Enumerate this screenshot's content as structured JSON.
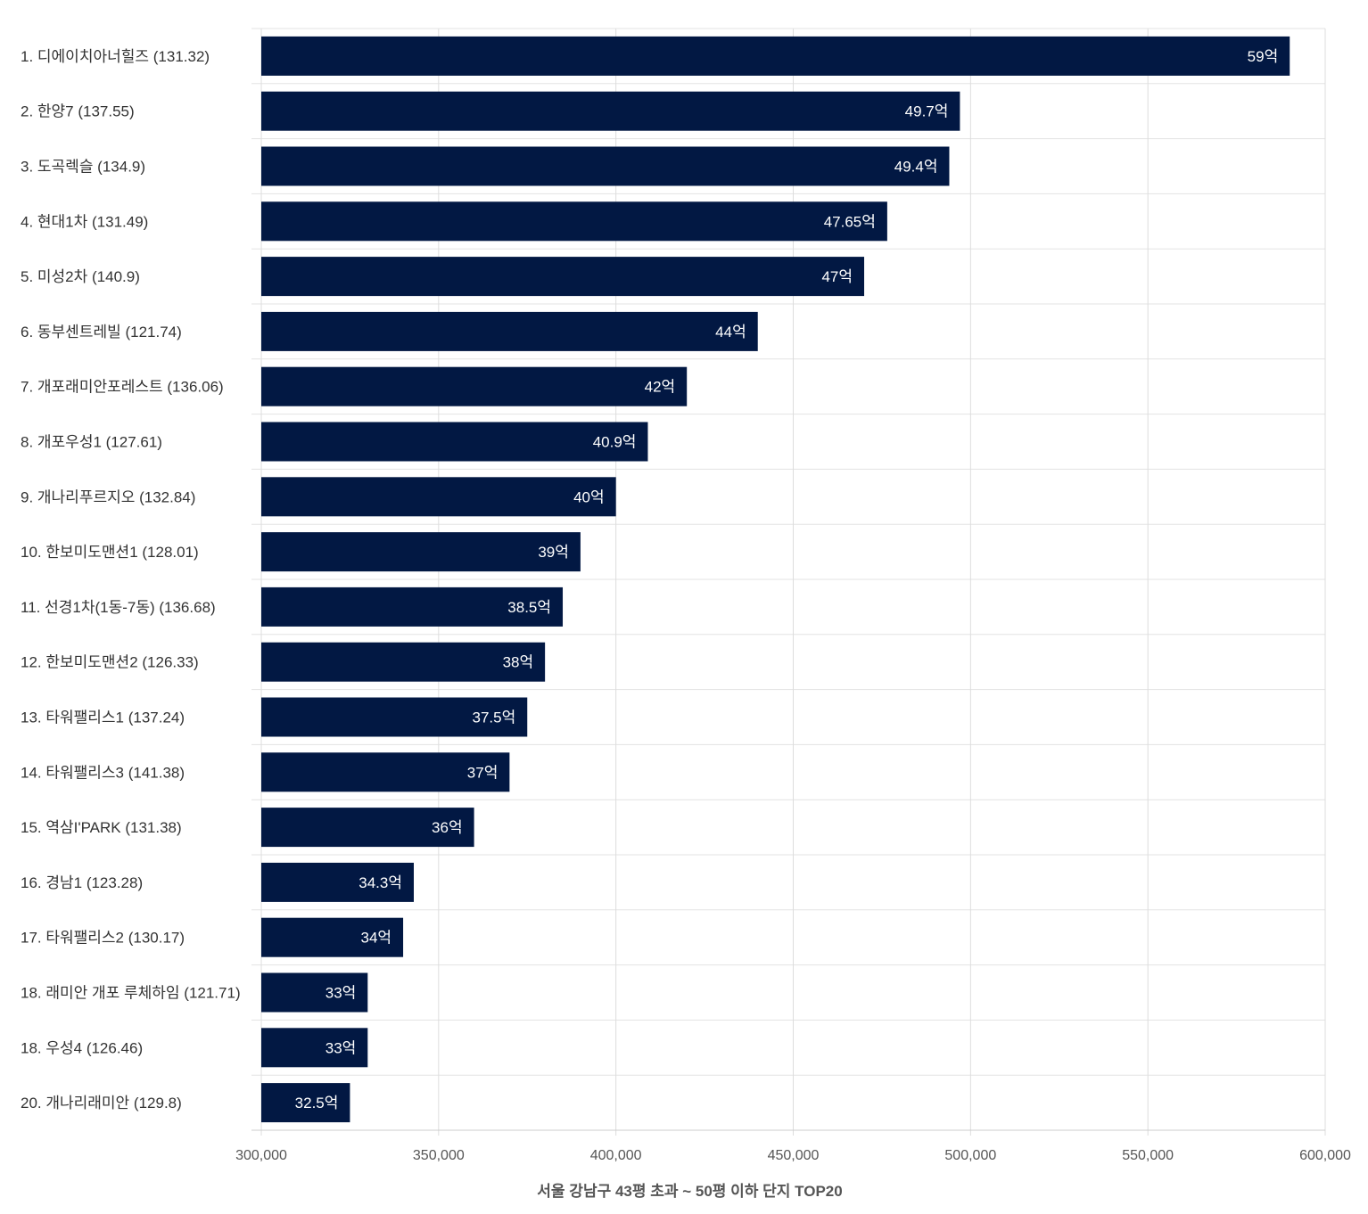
{
  "chart_data": {
    "type": "bar",
    "orientation": "horizontal",
    "xlabel": "서울 강남구 43평 초과 ~ 50평 이하 단지 TOP20",
    "xlim": [
      300000,
      600000
    ],
    "xticks": [
      "300,000",
      "350,000",
      "400,000",
      "450,000",
      "500,000",
      "550,000",
      "600,000"
    ],
    "grid": true,
    "colors": {
      "bar": "#021843"
    },
    "categories": [
      "1. 디에이치아너힐즈 (131.32)",
      "2. 한양7 (137.55)",
      "3. 도곡렉슬 (134.9)",
      "4. 현대1차 (131.49)",
      "5. 미성2차 (140.9)",
      "6. 동부센트레빌 (121.74)",
      "7. 개포래미안포레스트 (136.06)",
      "8. 개포우성1 (127.61)",
      "9. 개나리푸르지오 (132.84)",
      "10. 한보미도맨션1 (128.01)",
      "11. 선경1차(1동-7동) (136.68)",
      "12. 한보미도맨션2 (126.33)",
      "13. 타워팰리스1 (137.24)",
      "14. 타워팰리스3 (141.38)",
      "15. 역삼I'PARK (131.38)",
      "16. 경남1 (123.28)",
      "17. 타워팰리스2 (130.17)",
      "18. 래미안 개포 루체하임 (121.71)",
      "18. 우성4 (126.46)",
      "20. 개나리래미안 (129.8)"
    ],
    "values": [
      590000,
      497000,
      494000,
      476500,
      470000,
      440000,
      420000,
      409000,
      400000,
      390000,
      385000,
      380000,
      375000,
      370000,
      360000,
      343000,
      340000,
      330000,
      330000,
      325000
    ],
    "data_labels": [
      "59억",
      "49.7억",
      "49.4억",
      "47.65억",
      "47억",
      "44억",
      "42억",
      "40.9억",
      "40억",
      "39억",
      "38.5억",
      "38억",
      "37.5억",
      "37억",
      "36억",
      "34.3억",
      "34억",
      "33억",
      "33억",
      "32.5억"
    ]
  }
}
